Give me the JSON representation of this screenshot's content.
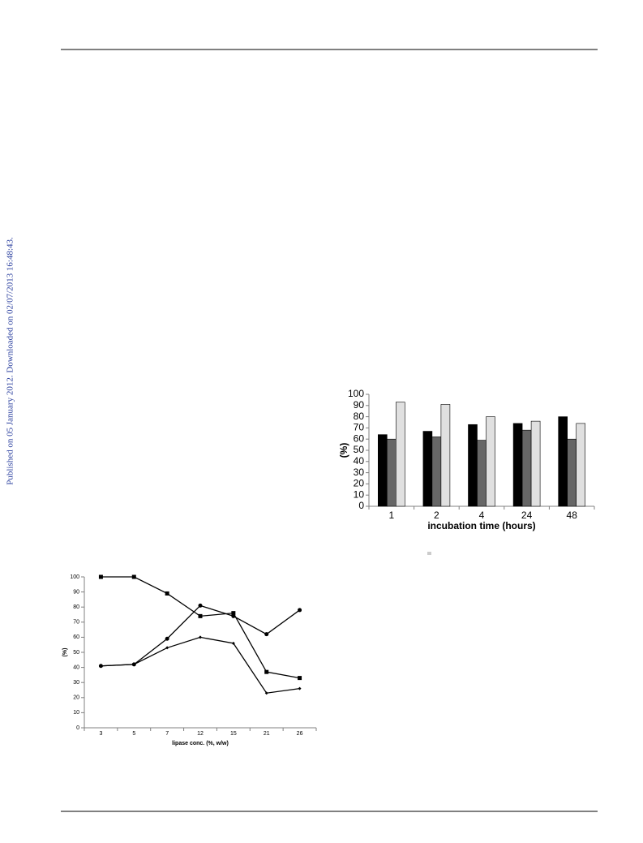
{
  "side_note": "Published on 05 January 2012. Downloaded on 02/07/2013 16:48:43.",
  "chart_data": [
    {
      "type": "bar",
      "ylabel": "(%)",
      "xlabel": "incubation time (hours)",
      "categories": [
        "1",
        "2",
        "4",
        "24",
        "48"
      ],
      "series": [
        {
          "color": "#000000",
          "values": [
            64,
            67,
            73,
            74,
            80
          ]
        },
        {
          "color": "#666666",
          "values": [
            60,
            62,
            59,
            68,
            60
          ]
        },
        {
          "color": "#e0e0e0",
          "values": [
            93,
            91,
            80,
            76,
            74
          ]
        }
      ],
      "ylim": [
        0,
        100
      ],
      "yticks": [
        0,
        10,
        20,
        30,
        40,
        50,
        60,
        70,
        80,
        90,
        100
      ],
      "grid": false
    },
    {
      "type": "line",
      "ylabel": "(%)",
      "xlabel": "lipase conc. (%, w/w)",
      "categories": [
        "3",
        "5",
        "7",
        "12",
        "15",
        "21",
        "26"
      ],
      "series": [
        {
          "color": "#000000",
          "marker": "square",
          "values": [
            100,
            100,
            89,
            74,
            76,
            37,
            33
          ]
        },
        {
          "color": "#000000",
          "marker": "circle",
          "values": [
            41,
            42,
            59,
            81,
            74,
            62,
            78
          ]
        },
        {
          "color": "#000000",
          "marker": "diamond",
          "values": [
            41,
            42,
            53,
            60,
            56,
            23,
            26
          ]
        }
      ],
      "ylim": [
        0,
        100
      ],
      "yticks": [
        0,
        10,
        20,
        30,
        40,
        50,
        60,
        70,
        80,
        90,
        100
      ],
      "grid": false
    }
  ]
}
